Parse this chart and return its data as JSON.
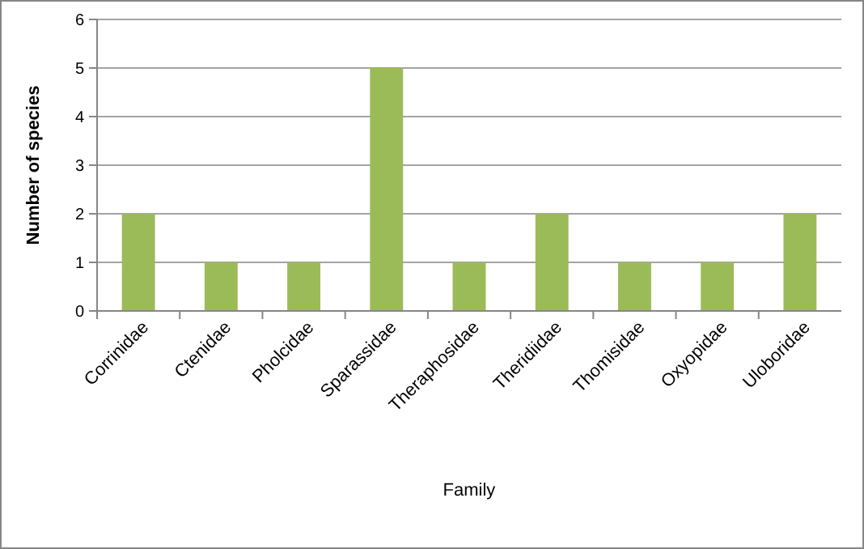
{
  "chart_data": {
    "type": "bar",
    "xlabel": "Family",
    "ylabel": "Number of species",
    "categories": [
      "Corrinidae",
      "Ctenidae",
      "Pholcidae",
      "Sparassidae",
      "Theraphosidae",
      "Theridiidae",
      "Thomisidae",
      "Oxyopidae",
      "Uloboridae"
    ],
    "values": [
      2,
      1,
      1,
      5,
      1,
      2,
      1,
      1,
      2
    ],
    "color": "#9bbb59",
    "ylim": [
      0,
      6
    ],
    "yticks": [
      0,
      1,
      2,
      3,
      4,
      5,
      6
    ],
    "grid": "y"
  }
}
